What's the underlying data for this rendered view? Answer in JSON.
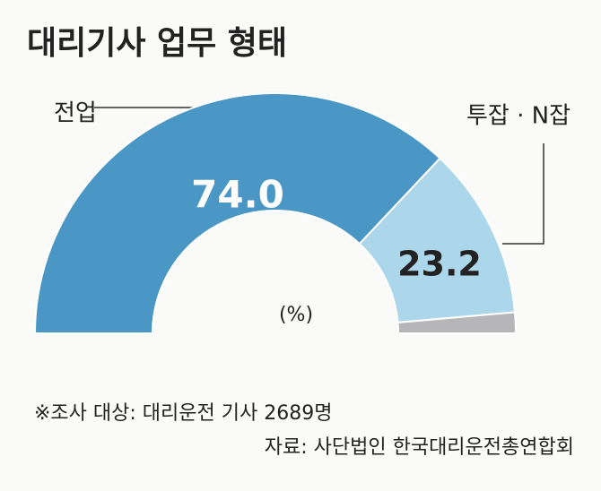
{
  "chart_data": {
    "type": "donut",
    "title": "대리기사 업무 형태",
    "categories": [
      "전업",
      "투잡 · N잡",
      null
    ],
    "values": [
      74.0,
      23.2,
      2.8
    ],
    "value_labels": [
      "74.0",
      "23.2",
      null
    ],
    "colors": [
      "#4a96c4",
      "#acd6ea",
      "#b6b6b9"
    ],
    "unit": "(%)",
    "note": "※조사 대상: 대리운전 기사 2689명",
    "source": "자료: 사단법인 한국대리운전총연합회"
  }
}
